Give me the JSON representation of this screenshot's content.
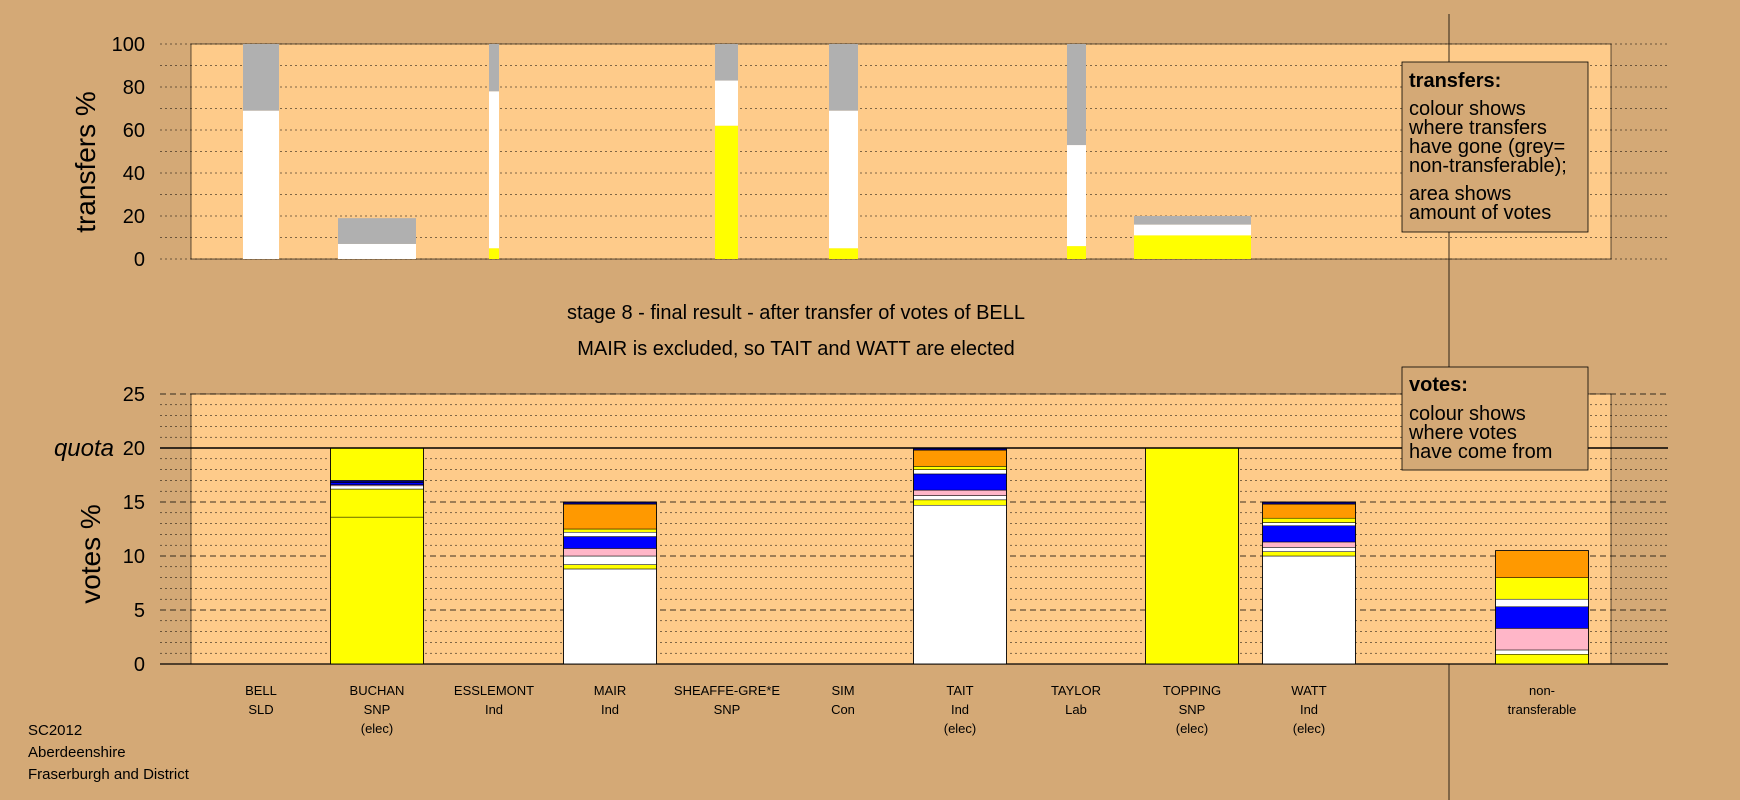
{
  "page": {
    "stage_title": "stage 8 - final result - after transfer of votes of BELL",
    "stage_subtitle": "MAIR is excluded, so TAIT and WATT are elected",
    "footer": [
      "SC2012",
      "Aberdeenshire",
      "Fraserburgh and District"
    ]
  },
  "colors": {
    "background": "#D4A976",
    "plot_bg": "#FECB8A",
    "grey": "#B0B0B0",
    "white": "#FFFFFF",
    "yellow": "#FFFF00",
    "blue": "#0000FF",
    "pink": "#FFB6C8",
    "orange": "#FF9900",
    "navy": "#000080"
  },
  "legends": {
    "transfers": {
      "title": "transfers:",
      "lines": [
        "colour shows",
        "where transfers",
        "have gone (grey=",
        "non-transferable);",
        "area shows",
        "amount of votes"
      ]
    },
    "votes": {
      "title": "votes:",
      "lines": [
        "colour shows",
        "where votes",
        "have come from"
      ]
    }
  },
  "chart_data": [
    {
      "type": "bar",
      "name": "transfers",
      "ylabel": "transfers %",
      "ylim": [
        0,
        100
      ],
      "yticks": [
        0,
        20,
        40,
        60,
        80,
        100
      ],
      "bars": [
        {
          "segments": [
            {
              "color": "white",
              "from": 0,
              "to": 69
            },
            {
              "color": "grey",
              "from": 69,
              "to": 100
            }
          ]
        },
        {
          "segments": [
            {
              "color": "white",
              "from": 0,
              "to": 7
            },
            {
              "color": "grey",
              "from": 7,
              "to": 19
            }
          ]
        },
        {
          "segments": [
            {
              "color": "yellow",
              "from": 0,
              "to": 5
            },
            {
              "color": "white",
              "from": 5,
              "to": 78
            },
            {
              "color": "grey",
              "from": 78,
              "to": 100
            }
          ]
        },
        {
          "segments": [
            {
              "color": "yellow",
              "from": 0,
              "to": 62
            },
            {
              "color": "white",
              "from": 62,
              "to": 83
            },
            {
              "color": "grey",
              "from": 83,
              "to": 100
            }
          ]
        },
        {
          "segments": [
            {
              "color": "yellow",
              "from": 0,
              "to": 5
            },
            {
              "color": "white",
              "from": 5,
              "to": 69
            },
            {
              "color": "grey",
              "from": 69,
              "to": 100
            }
          ]
        },
        {
          "segments": [
            {
              "color": "yellow",
              "from": 0,
              "to": 6
            },
            {
              "color": "white",
              "from": 6,
              "to": 53
            },
            {
              "color": "grey",
              "from": 53,
              "to": 100
            }
          ]
        },
        {
          "segments": [
            {
              "color": "yellow",
              "from": 0,
              "to": 11
            },
            {
              "color": "white",
              "from": 11,
              "to": 16
            },
            {
              "color": "grey",
              "from": 16,
              "to": 20
            }
          ]
        }
      ]
    },
    {
      "type": "bar",
      "name": "votes",
      "ylabel": "votes %",
      "ylim": [
        0,
        25
      ],
      "yticks": [
        0,
        5,
        10,
        15,
        20,
        25
      ],
      "quota": 20,
      "quota_label": "quota",
      "candidates": [
        {
          "name": "BELL",
          "party": "SLD",
          "status": ""
        },
        {
          "name": "BUCHAN",
          "party": "SNP",
          "status": "(elec)"
        },
        {
          "name": "ESSLEMONT",
          "party": "Ind",
          "status": ""
        },
        {
          "name": "MAIR",
          "party": "Ind",
          "status": ""
        },
        {
          "name": "SHEAFFE-GRE*E",
          "party": "SNP",
          "status": ""
        },
        {
          "name": "SIM",
          "party": "Con",
          "status": ""
        },
        {
          "name": "TAIT",
          "party": "Ind",
          "status": "(elec)"
        },
        {
          "name": "TAYLOR",
          "party": "Lab",
          "status": ""
        },
        {
          "name": "TOPPING",
          "party": "SNP",
          "status": "(elec)"
        },
        {
          "name": "WATT",
          "party": "Ind",
          "status": "(elec)"
        },
        {
          "name": "non-",
          "party": "transferable",
          "status": ""
        }
      ],
      "bars": [
        {
          "candidate": 1,
          "segments": [
            {
              "color": "yellow",
              "from": 0,
              "to": 13.6
            },
            {
              "color": "yellow",
              "from": 13.6,
              "to": 16.2
            },
            {
              "color": "white",
              "from": 16.2,
              "to": 16.5
            },
            {
              "color": "pink",
              "from": 16.5,
              "to": 16.6
            },
            {
              "color": "blue",
              "from": 16.6,
              "to": 16.8
            },
            {
              "color": "navy",
              "from": 16.8,
              "to": 17.0
            },
            {
              "color": "yellow",
              "from": 17.0,
              "to": 20.0
            }
          ]
        },
        {
          "candidate": 3,
          "segments": [
            {
              "color": "white",
              "from": 0,
              "to": 8.8
            },
            {
              "color": "yellow",
              "from": 8.8,
              "to": 9.2
            },
            {
              "color": "white",
              "from": 9.2,
              "to": 10.0
            },
            {
              "color": "pink",
              "from": 10.0,
              "to": 10.7
            },
            {
              "color": "blue",
              "from": 10.7,
              "to": 11.8
            },
            {
              "color": "white",
              "from": 11.8,
              "to": 12.2
            },
            {
              "color": "yellow",
              "from": 12.2,
              "to": 12.5
            },
            {
              "color": "orange",
              "from": 12.5,
              "to": 14.8
            },
            {
              "color": "navy",
              "from": 14.8,
              "to": 15.0
            }
          ]
        },
        {
          "candidate": 6,
          "segments": [
            {
              "color": "white",
              "from": 0,
              "to": 14.7
            },
            {
              "color": "yellow",
              "from": 14.7,
              "to": 15.2
            },
            {
              "color": "white",
              "from": 15.2,
              "to": 15.6
            },
            {
              "color": "pink",
              "from": 15.6,
              "to": 16.1
            },
            {
              "color": "blue",
              "from": 16.1,
              "to": 17.6
            },
            {
              "color": "white",
              "from": 17.6,
              "to": 18.0
            },
            {
              "color": "yellow",
              "from": 18.0,
              "to": 18.3
            },
            {
              "color": "orange",
              "from": 18.3,
              "to": 19.8
            },
            {
              "color": "navy",
              "from": 19.8,
              "to": 20.0
            }
          ]
        },
        {
          "candidate": 8,
          "segments": [
            {
              "color": "yellow",
              "from": 0,
              "to": 20.0
            }
          ]
        },
        {
          "candidate": 9,
          "segments": [
            {
              "color": "white",
              "from": 0,
              "to": 10.0
            },
            {
              "color": "yellow",
              "from": 10.0,
              "to": 10.4
            },
            {
              "color": "white",
              "from": 10.4,
              "to": 10.8
            },
            {
              "color": "pink",
              "from": 10.8,
              "to": 11.3
            },
            {
              "color": "blue",
              "from": 11.3,
              "to": 12.8
            },
            {
              "color": "white",
              "from": 12.8,
              "to": 13.1
            },
            {
              "color": "yellow",
              "from": 13.1,
              "to": 13.5
            },
            {
              "color": "orange",
              "from": 13.5,
              "to": 14.8
            },
            {
              "color": "navy",
              "from": 14.8,
              "to": 15.0
            }
          ]
        },
        {
          "candidate": 10,
          "segments": [
            {
              "color": "yellow",
              "from": 0,
              "to": 0.9
            },
            {
              "color": "white",
              "from": 0.9,
              "to": 1.3
            },
            {
              "color": "pink",
              "from": 1.3,
              "to": 3.3
            },
            {
              "color": "blue",
              "from": 3.3,
              "to": 5.3
            },
            {
              "color": "white",
              "from": 5.3,
              "to": 6.0
            },
            {
              "color": "yellow",
              "from": 6.0,
              "to": 8.0
            },
            {
              "color": "orange",
              "from": 8.0,
              "to": 10.5
            }
          ]
        }
      ]
    }
  ]
}
